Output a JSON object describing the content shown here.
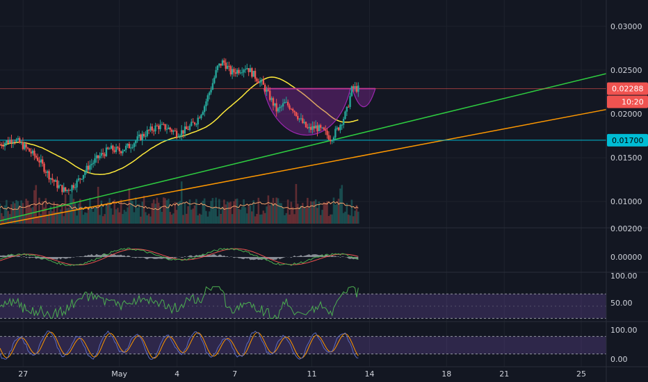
{
  "chart_data": {
    "type": "candlestick",
    "x_axis": {
      "date_labels": [
        {
          "label": "27",
          "day": -4
        },
        {
          "label": "May",
          "day": 1
        },
        {
          "label": "4",
          "day": 4
        },
        {
          "label": "7",
          "day": 7
        },
        {
          "label": "11",
          "day": 11
        },
        {
          "label": "14",
          "day": 14
        },
        {
          "label": "18",
          "day": 18
        },
        {
          "label": "21",
          "day": 21
        },
        {
          "label": "25",
          "day": 25
        }
      ],
      "visible_range_days": [
        -5.2,
        26.3
      ]
    },
    "price_axis": {
      "ticks": [
        "0.03000",
        "0.02500",
        "0.02000",
        "0.01500",
        "0.01000"
      ],
      "tick_values": [
        0.03,
        0.025,
        0.02,
        0.015,
        0.01
      ],
      "range": [
        0.007,
        0.033
      ]
    },
    "price_labels": {
      "current": "0.02288",
      "countdown": "10:20",
      "support": "0.01700"
    },
    "levels": {
      "resistance": 0.02288,
      "support": 0.017
    },
    "trendlines": [
      {
        "name": "green",
        "color": "#2ecc40",
        "points": [
          [
            -5.2,
            0.0078
          ],
          [
            26.3,
            0.0246
          ]
        ]
      },
      {
        "name": "orange",
        "color": "#ff9800",
        "points": [
          [
            -5.2,
            0.0074
          ],
          [
            26.3,
            0.0205
          ]
        ]
      }
    ],
    "price_path": [
      [
        -5.2,
        0.0165
      ],
      [
        -4.5,
        0.0172
      ],
      [
        -3.8,
        0.016
      ],
      [
        -3.2,
        0.0148
      ],
      [
        -2.6,
        0.0128
      ],
      [
        -2.2,
        0.0118
      ],
      [
        -1.8,
        0.0112
      ],
      [
        -1.2,
        0.0122
      ],
      [
        -0.6,
        0.014
      ],
      [
        0.0,
        0.0152
      ],
      [
        0.5,
        0.016
      ],
      [
        1.0,
        0.0158
      ],
      [
        1.5,
        0.0163
      ],
      [
        2.0,
        0.0172
      ],
      [
        2.5,
        0.018
      ],
      [
        3.0,
        0.0186
      ],
      [
        3.5,
        0.0184
      ],
      [
        4.0,
        0.0178
      ],
      [
        4.5,
        0.0182
      ],
      [
        5.0,
        0.0192
      ],
      [
        5.4,
        0.0208
      ],
      [
        5.8,
        0.0232
      ],
      [
        6.1,
        0.0253
      ],
      [
        6.4,
        0.026
      ],
      [
        6.8,
        0.0247
      ],
      [
        7.2,
        0.025
      ],
      [
        7.6,
        0.0254
      ],
      [
        8.0,
        0.0244
      ],
      [
        8.4,
        0.0235
      ],
      [
        8.8,
        0.022
      ],
      [
        9.2,
        0.0203
      ],
      [
        9.6,
        0.0212
      ],
      [
        10.0,
        0.0207
      ],
      [
        10.4,
        0.0193
      ],
      [
        10.8,
        0.0182
      ],
      [
        11.2,
        0.0185
      ],
      [
        11.6,
        0.018
      ],
      [
        12.0,
        0.0172
      ],
      [
        12.4,
        0.0185
      ],
      [
        12.8,
        0.0202
      ],
      [
        13.1,
        0.023
      ],
      [
        13.5,
        0.0228
      ]
    ],
    "cup_handle_pattern": {
      "color": "#9c27b0"
    },
    "oscillator_axes": [
      {
        "ticks": [
          "0.00200",
          "0.00000"
        ]
      },
      {
        "ticks": [
          "100.00",
          "50.00"
        ]
      },
      {
        "ticks": [
          "100.00",
          "0.00"
        ]
      }
    ]
  }
}
